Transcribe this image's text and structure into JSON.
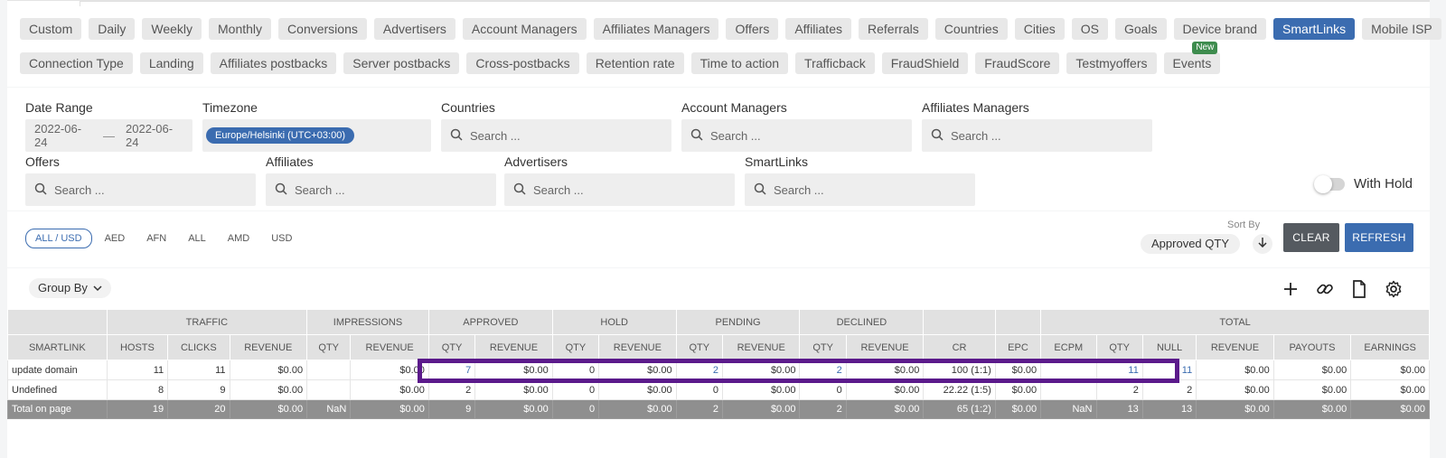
{
  "tabs": {
    "row1": [
      {
        "label": "Custom"
      },
      {
        "label": "Daily"
      },
      {
        "label": "Weekly"
      },
      {
        "label": "Monthly"
      },
      {
        "label": "Conversions"
      },
      {
        "label": "Advertisers"
      },
      {
        "label": "Account Managers"
      },
      {
        "label": "Affiliates Managers"
      },
      {
        "label": "Offers"
      },
      {
        "label": "Affiliates"
      },
      {
        "label": "Referrals"
      },
      {
        "label": "Countries"
      },
      {
        "label": "Cities"
      },
      {
        "label": "OS"
      },
      {
        "label": "Goals"
      },
      {
        "label": "Device brand"
      },
      {
        "label": "SmartLinks",
        "active": true
      },
      {
        "label": "Mobile ISP"
      }
    ],
    "row2": [
      {
        "label": "Connection Type"
      },
      {
        "label": "Landing"
      },
      {
        "label": "Affiliates postbacks"
      },
      {
        "label": "Server postbacks"
      },
      {
        "label": "Cross-postbacks"
      },
      {
        "label": "Retention rate"
      },
      {
        "label": "Time to action"
      },
      {
        "label": "Trafficback"
      },
      {
        "label": "FraudShield"
      },
      {
        "label": "FraudScore"
      },
      {
        "label": "Testmyoffers"
      },
      {
        "label": "Events",
        "badge": "New"
      }
    ]
  },
  "filters": {
    "date_range": {
      "label": "Date Range",
      "from": "2022-06-24",
      "sep": "—",
      "to": "2022-06-24"
    },
    "timezone": {
      "label": "Timezone",
      "value": "Europe/Helsinki (UTC+03:00)"
    },
    "countries": {
      "label": "Countries",
      "placeholder": "Search ..."
    },
    "account_managers": {
      "label": "Account Managers",
      "placeholder": "Search ..."
    },
    "affiliates_managers": {
      "label": "Affiliates Managers",
      "placeholder": "Search ..."
    },
    "offers": {
      "label": "Offers",
      "placeholder": "Search ..."
    },
    "affiliates": {
      "label": "Affiliates",
      "placeholder": "Search ..."
    },
    "advertisers": {
      "label": "Advertisers",
      "placeholder": "Search ..."
    },
    "smartlinks": {
      "label": "SmartLinks",
      "placeholder": "Search ..."
    },
    "with_hold": "With Hold"
  },
  "currencies": [
    "ALL / USD",
    "AED",
    "AFN",
    "ALL",
    "AMD",
    "USD"
  ],
  "sort": {
    "label": "Sort By",
    "value": "Approved QTY"
  },
  "buttons": {
    "clear": "CLEAR",
    "refresh": "REFRESH"
  },
  "group_by": "Group By",
  "table": {
    "groups": [
      {
        "label": "",
        "span": 1
      },
      {
        "label": "TRAFFIC",
        "span": 3
      },
      {
        "label": "IMPRESSIONS",
        "span": 2
      },
      {
        "label": "APPROVED",
        "span": 2
      },
      {
        "label": "HOLD",
        "span": 2
      },
      {
        "label": "PENDING",
        "span": 2
      },
      {
        "label": "DECLINED",
        "span": 2
      },
      {
        "label": "",
        "span": 1
      },
      {
        "label": "",
        "span": 1
      },
      {
        "label": "TOTAL",
        "span": 6
      }
    ],
    "columns": [
      "SMARTLINK",
      "HOSTS",
      "CLICKS",
      "REVENUE",
      "QTY",
      "REVENUE",
      "QTY",
      "REVENUE",
      "QTY",
      "REVENUE",
      "QTY",
      "REVENUE",
      "QTY",
      "REVENUE",
      "CR",
      "EPC",
      "ECPM",
      "QTY",
      "NULL",
      "REVENUE",
      "PAYOUTS",
      "EARNINGS"
    ],
    "rows": [
      [
        "update domain",
        "11",
        "11",
        "$0.00",
        "",
        "$0.00",
        "7",
        "$0.00",
        "0",
        "$0.00",
        "2",
        "$0.00",
        "2",
        "$0.00",
        "100 (1:1)",
        "$0.00",
        "",
        "11",
        "11",
        "$0.00",
        "$0.00",
        "$0.00"
      ],
      [
        "Undefined",
        "8",
        "9",
        "$0.00",
        "",
        "$0.00",
        "2",
        "$0.00",
        "0",
        "$0.00",
        "0",
        "$0.00",
        "0",
        "$0.00",
        "22.22 (1:5)",
        "$0.00",
        "",
        "2",
        "2",
        "$0.00",
        "$0.00",
        "$0.00"
      ]
    ],
    "total": [
      "Total on page",
      "19",
      "20",
      "$0.00",
      "NaN",
      "$0.00",
      "9",
      "$0.00",
      "0",
      "$0.00",
      "2",
      "$0.00",
      "2",
      "$0.00",
      "65 (1:2)",
      "$0.00",
      "NaN",
      "13",
      "13",
      "$0.00",
      "$0.00",
      "$0.00"
    ]
  },
  "colors": {
    "accent": "#3b6cb0",
    "highlight": "#5b1a8b",
    "badge": "#3e8c4e"
  }
}
